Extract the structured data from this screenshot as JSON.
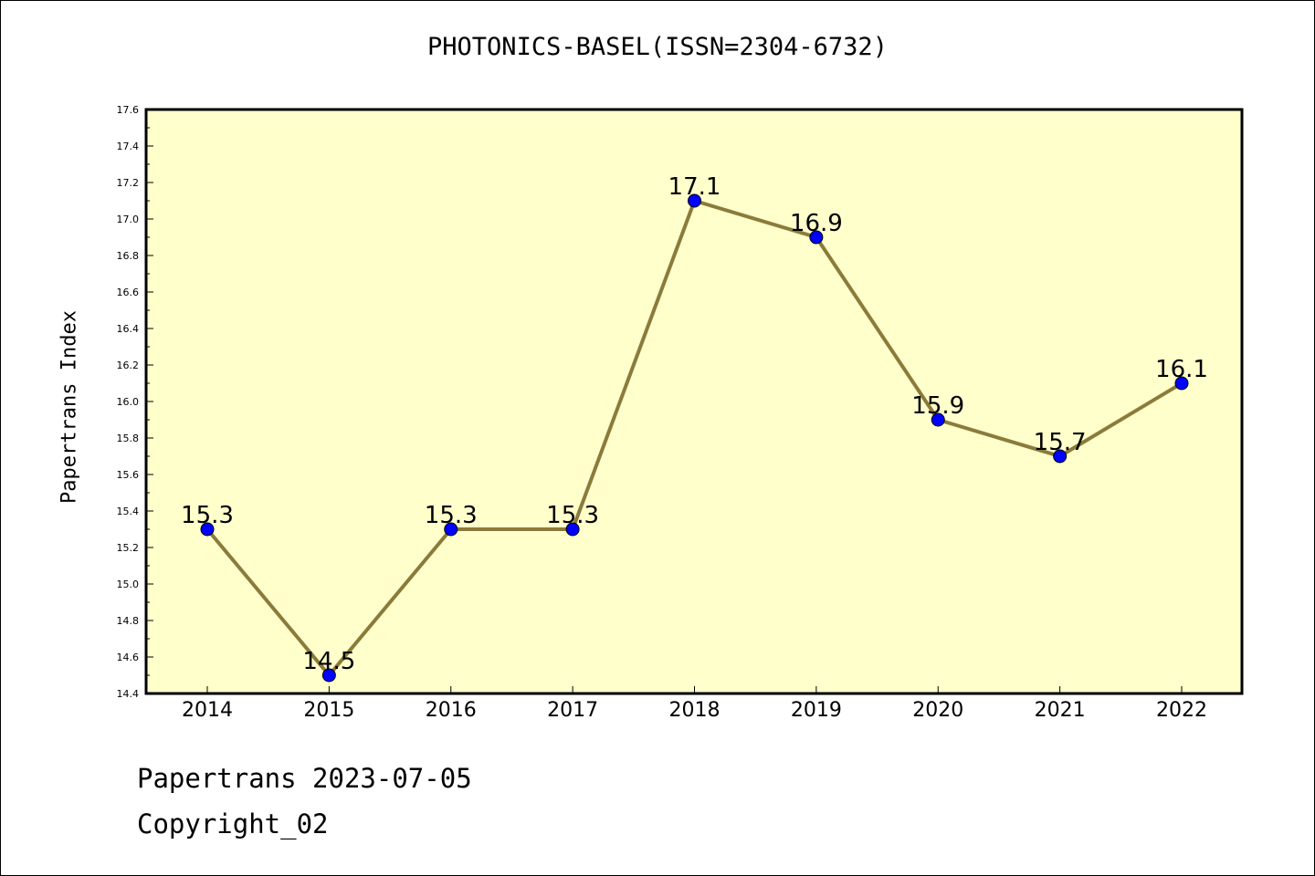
{
  "header": {
    "title": "PHOTONICS-BASEL(ISSN=2304-6732)"
  },
  "footer": {
    "line1": "Papertrans 2023-07-05",
    "line2": "Copyright_02"
  },
  "colors": {
    "plot_background": "#ffffcc",
    "line": "#8b7b3a",
    "marker": "#0000ff"
  },
  "chart_data": {
    "type": "line",
    "title": "PHOTONICS-BASEL(ISSN=2304-6732)",
    "xlabel": "",
    "ylabel": "Papertrans Index",
    "categories": [
      "2014",
      "2015",
      "2016",
      "2017",
      "2018",
      "2019",
      "2020",
      "2021",
      "2022"
    ],
    "series": [
      {
        "values": [
          15.3,
          14.5,
          15.3,
          15.3,
          17.1,
          16.9,
          15.9,
          15.7,
          16.1
        ],
        "labels": [
          "15.3",
          "14.5",
          "15.3",
          "15.3",
          "17.1",
          "16.9",
          "15.9",
          "15.7",
          "16.1"
        ]
      }
    ],
    "ylim": [
      14.4,
      17.6
    ],
    "yticks": [
      "14.4",
      "14.6",
      "14.8",
      "15.0",
      "15.2",
      "15.4",
      "15.6",
      "15.8",
      "16.0",
      "16.2",
      "16.4",
      "16.6",
      "16.8",
      "17.0",
      "17.2",
      "17.4",
      "17.6"
    ],
    "grid": false,
    "legend": "none"
  }
}
